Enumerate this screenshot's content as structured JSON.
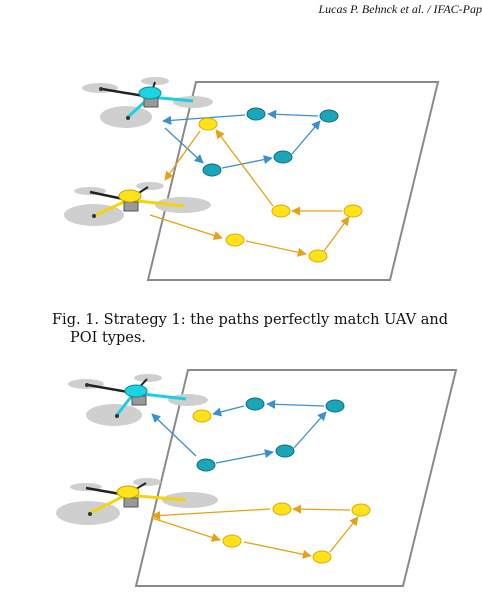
{
  "header": {
    "running_head": "Lucas P. Behnck et al. / IFAC-Pap"
  },
  "figure1": {
    "caption_line1": "Fig. 1. Strategy 1: the paths perfectly match UAV and",
    "caption_line2": "POI types."
  },
  "colors": {
    "cyan_poi": "#1aa6b8",
    "yellow_poi": "#ffe21a",
    "blue_path": "#3c8fcf",
    "orange_path": "#e6a214",
    "plane_border": "#8a8a8a"
  },
  "icons": [
    "quadcopter-cyan-icon",
    "quadcopter-yellow-icon"
  ]
}
